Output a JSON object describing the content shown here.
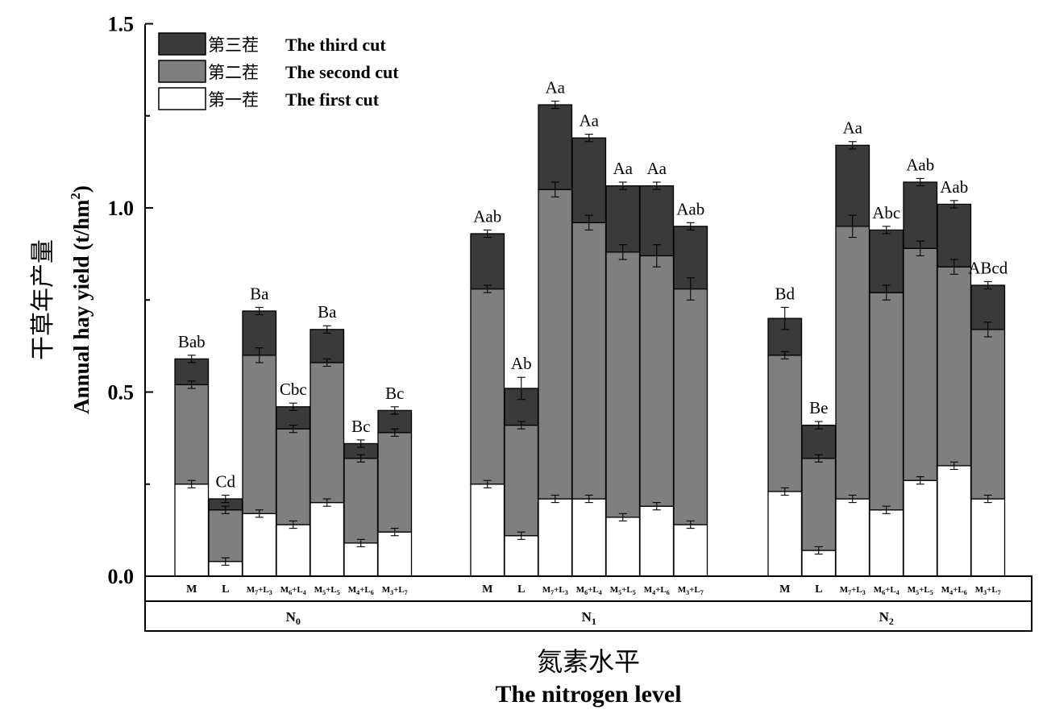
{
  "chart_data": {
    "type": "bar",
    "stacked": true,
    "ylabel_cn": "干草年产量",
    "ylabel_en": "Annual hay yield (t/hm",
    "ylabel_sup": "2",
    "ylabel_close": ")",
    "xlabel_cn": "氮素水平",
    "xlabel_en": "The nitrogen level",
    "ylim": [
      0,
      1.5
    ],
    "yticks": [
      "0.0",
      "0.5",
      "1.0",
      "1.5"
    ],
    "legend": {
      "placement": "top-left",
      "entries": [
        {
          "cn": "第三茬",
          "en": "The third cut",
          "color": "#3a3a3a"
        },
        {
          "cn": "第二茬",
          "en": "The second cut",
          "color": "#7f7f7f"
        },
        {
          "cn": "第一茬",
          "en": "The first cut",
          "color": "#ffffff"
        }
      ]
    },
    "series_names": [
      "The first cut",
      "The second cut",
      "The third cut"
    ],
    "groups": [
      {
        "level": "N",
        "level_sub": "0",
        "bars": [
          {
            "label": "M",
            "cum": [
              0.25,
              0.52,
              0.59
            ],
            "err": [
              0.01,
              0.01,
              0.01
            ],
            "letters": "Bab"
          },
          {
            "label": "L",
            "cum": [
              0.04,
              0.18,
              0.21
            ],
            "err": [
              0.01,
              0.01,
              0.01
            ],
            "letters": "Cd"
          },
          {
            "label": [
              "M",
              "7",
              "+L",
              "3"
            ],
            "cum": [
              0.17,
              0.6,
              0.72
            ],
            "err": [
              0.01,
              0.02,
              0.01
            ],
            "letters": "Ba"
          },
          {
            "label": [
              "M",
              "6",
              "+L",
              "4"
            ],
            "cum": [
              0.14,
              0.4,
              0.46
            ],
            "err": [
              0.01,
              0.01,
              0.01
            ],
            "letters": "Cbc"
          },
          {
            "label": [
              "M",
              "5",
              "+L",
              "5"
            ],
            "cum": [
              0.2,
              0.58,
              0.67
            ],
            "err": [
              0.01,
              0.01,
              0.01
            ],
            "letters": "Ba"
          },
          {
            "label": [
              "M",
              "4",
              "+L",
              "6"
            ],
            "cum": [
              0.09,
              0.32,
              0.36
            ],
            "err": [
              0.01,
              0.01,
              0.01
            ],
            "letters": "Bc"
          },
          {
            "label": [
              "M",
              "3",
              "+L",
              "7"
            ],
            "cum": [
              0.12,
              0.39,
              0.45
            ],
            "err": [
              0.01,
              0.01,
              0.01
            ],
            "letters": "Bc"
          }
        ]
      },
      {
        "level": "N",
        "level_sub": "1",
        "bars": [
          {
            "label": "M",
            "cum": [
              0.25,
              0.78,
              0.93
            ],
            "err": [
              0.01,
              0.01,
              0.01
            ],
            "letters": "Aab"
          },
          {
            "label": "L",
            "cum": [
              0.11,
              0.41,
              0.51
            ],
            "err": [
              0.01,
              0.01,
              0.03
            ],
            "letters": "Ab"
          },
          {
            "label": [
              "M",
              "7",
              "+L",
              "3"
            ],
            "cum": [
              0.21,
              1.05,
              1.28
            ],
            "err": [
              0.01,
              0.02,
              0.01
            ],
            "letters": "Aa"
          },
          {
            "label": [
              "M",
              "6",
              "+L",
              "4"
            ],
            "cum": [
              0.21,
              0.96,
              1.19
            ],
            "err": [
              0.01,
              0.02,
              0.01
            ],
            "letters": "Aa"
          },
          {
            "label": [
              "M",
              "5",
              "+L",
              "5"
            ],
            "cum": [
              0.16,
              0.88,
              1.06
            ],
            "err": [
              0.01,
              0.02,
              0.01
            ],
            "letters": "Aa"
          },
          {
            "label": [
              "M",
              "4",
              "+L",
              "6"
            ],
            "cum": [
              0.19,
              0.87,
              1.06
            ],
            "err": [
              0.01,
              0.03,
              0.01
            ],
            "letters": "Aa"
          },
          {
            "label": [
              "M",
              "3",
              "+L",
              "7"
            ],
            "cum": [
              0.14,
              0.78,
              0.95
            ],
            "err": [
              0.01,
              0.03,
              0.01
            ],
            "letters": "Aab"
          }
        ]
      },
      {
        "level": "N",
        "level_sub": "2",
        "bars": [
          {
            "label": "M",
            "cum": [
              0.23,
              0.6,
              0.7
            ],
            "err": [
              0.01,
              0.01,
              0.03
            ],
            "letters": "Bd"
          },
          {
            "label": "L",
            "cum": [
              0.07,
              0.32,
              0.41
            ],
            "err": [
              0.01,
              0.01,
              0.01
            ],
            "letters": "Be"
          },
          {
            "label": [
              "M",
              "7",
              "+L",
              "3"
            ],
            "cum": [
              0.21,
              0.95,
              1.17
            ],
            "err": [
              0.01,
              0.03,
              0.01
            ],
            "letters": "Aa"
          },
          {
            "label": [
              "M",
              "6",
              "+L",
              "4"
            ],
            "cum": [
              0.18,
              0.77,
              0.94
            ],
            "err": [
              0.01,
              0.02,
              0.01
            ],
            "letters": "Abc"
          },
          {
            "label": [
              "M",
              "5",
              "+L",
              "5"
            ],
            "cum": [
              0.26,
              0.89,
              1.07
            ],
            "err": [
              0.01,
              0.02,
              0.01
            ],
            "letters": "Aab"
          },
          {
            "label": [
              "M",
              "4",
              "+L",
              "6"
            ],
            "cum": [
              0.3,
              0.84,
              1.01
            ],
            "err": [
              0.01,
              0.02,
              0.01
            ],
            "letters": "Aab"
          },
          {
            "label": [
              "M",
              "3",
              "+L",
              "7"
            ],
            "cum": [
              0.21,
              0.67,
              0.79
            ],
            "err": [
              0.01,
              0.02,
              0.01
            ],
            "letters": "ABcd"
          }
        ]
      }
    ]
  }
}
